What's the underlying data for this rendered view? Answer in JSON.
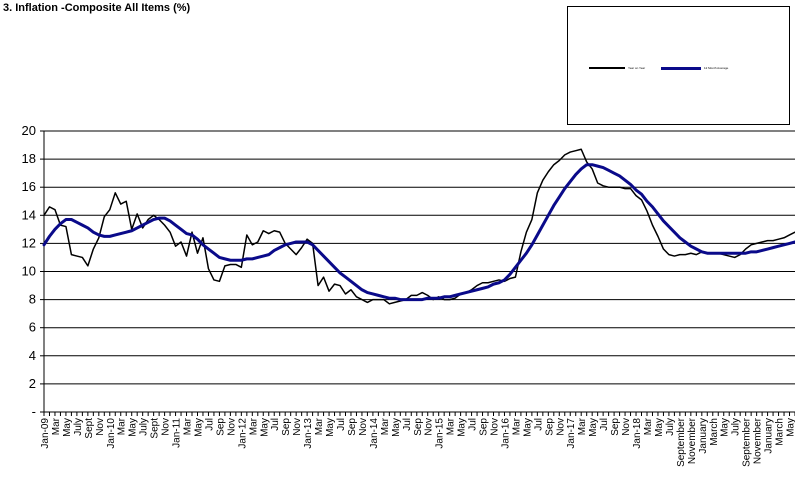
{
  "chart_data": {
    "type": "line",
    "title": "3. Inflation -Composite All Items (%)",
    "xlabel": "",
    "ylabel": "",
    "ylim": [
      0,
      20
    ],
    "yticks": [
      0,
      2,
      4,
      6,
      8,
      10,
      12,
      14,
      16,
      18,
      20
    ],
    "ytick_labels": [
      "-",
      "2",
      "4",
      "6",
      "8",
      "10",
      "12",
      "14",
      "16",
      "18",
      "20"
    ],
    "grid": "horizontal",
    "legend_position": "top-right",
    "x_tick_labels": [
      "Jan-09",
      "Mar",
      "May",
      "July",
      "Sept",
      "Nov",
      "Jan-10",
      "Mar",
      "May",
      "July",
      "Sept",
      "Nov",
      "Jan-11",
      "Mar",
      "May",
      "Jul",
      "Sep",
      "Nov",
      "Jan-12",
      "Mar",
      "May",
      "Jul",
      "Sep",
      "Nov",
      "Jan-13",
      "Mar",
      "May",
      "Jul",
      "Sep",
      "Nov",
      "Jan-14",
      "Mar",
      "May",
      "Jul",
      "Sep",
      "Nov",
      "Jan-15",
      "Mar",
      "May",
      "Jul",
      "Sep",
      "Nov",
      "Jan-16",
      "Mar",
      "May",
      "Jul",
      "Sep",
      "Nov",
      "Jan-17",
      "Mar",
      "May",
      "Jul",
      "Sep",
      "Nov",
      "Jan-18",
      "Mar",
      "May",
      "July",
      "September",
      "November",
      "January",
      "March",
      "May",
      "July",
      "September",
      "November",
      "January",
      "March",
      "May",
      "Jul"
    ],
    "series": [
      {
        "name": "Year on Year",
        "color": "#000000",
        "width": 1.5,
        "values": [
          14.0,
          14.6,
          14.4,
          13.3,
          13.2,
          11.2,
          11.1,
          11.0,
          10.4,
          11.6,
          12.4,
          13.9,
          14.4,
          15.6,
          14.8,
          15.0,
          13.0,
          14.1,
          13.1,
          13.7,
          14.0,
          13.7,
          13.3,
          12.8,
          11.8,
          12.1,
          11.1,
          12.8,
          11.3,
          12.4,
          10.2,
          9.4,
          9.3,
          10.4,
          10.5,
          10.5,
          10.3,
          12.6,
          11.9,
          12.1,
          12.9,
          12.7,
          12.9,
          12.8,
          12.0,
          11.6,
          11.2,
          11.7,
          12.3,
          12.0,
          9.0,
          9.6,
          8.6,
          9.1,
          9.0,
          8.4,
          8.7,
          8.2,
          8.0,
          7.8,
          8.0,
          8.0,
          8.0,
          7.7,
          7.8,
          7.9,
          8.0,
          8.3,
          8.3,
          8.5,
          8.3,
          8.0,
          8.2,
          8.0,
          8.0,
          8.1,
          8.4,
          8.5,
          8.7,
          9.0,
          9.2,
          9.2,
          9.3,
          9.4,
          9.3,
          9.5,
          9.6,
          11.4,
          12.8,
          13.7,
          15.6,
          16.5,
          17.1,
          17.6,
          17.9,
          18.3,
          18.5,
          18.6,
          18.7,
          17.8,
          17.3,
          16.3,
          16.1,
          16.0,
          16.0,
          16.0,
          15.9,
          15.9,
          15.4,
          15.1,
          14.3,
          13.3,
          12.5,
          11.6,
          11.2,
          11.1,
          11.2,
          11.2,
          11.3,
          11.2,
          11.4,
          11.3,
          11.3,
          11.3,
          11.2,
          11.1,
          11.0,
          11.2,
          11.6,
          11.9,
          12.0,
          12.1,
          12.2,
          12.2,
          12.3,
          12.4,
          12.6,
          12.8
        ]
      },
      {
        "name": "12 Month Average",
        "color": "#0a0a8a",
        "width": 3,
        "values": [
          11.9,
          12.5,
          13.0,
          13.4,
          13.7,
          13.7,
          13.5,
          13.3,
          13.1,
          12.8,
          12.6,
          12.5,
          12.5,
          12.6,
          12.7,
          12.8,
          12.9,
          13.1,
          13.3,
          13.5,
          13.7,
          13.8,
          13.8,
          13.6,
          13.3,
          13.0,
          12.7,
          12.6,
          12.3,
          11.9,
          11.6,
          11.3,
          11.0,
          10.9,
          10.8,
          10.8,
          10.8,
          10.9,
          10.9,
          11.0,
          11.1,
          11.2,
          11.5,
          11.7,
          11.9,
          12.0,
          12.1,
          12.1,
          12.1,
          11.9,
          11.5,
          11.1,
          10.7,
          10.3,
          9.9,
          9.6,
          9.3,
          9.0,
          8.7,
          8.5,
          8.4,
          8.3,
          8.2,
          8.1,
          8.1,
          8.0,
          8.0,
          8.0,
          8.0,
          8.0,
          8.1,
          8.1,
          8.1,
          8.2,
          8.2,
          8.3,
          8.4,
          8.5,
          8.6,
          8.7,
          8.8,
          8.9,
          9.1,
          9.2,
          9.4,
          9.8,
          10.3,
          10.8,
          11.3,
          11.9,
          12.6,
          13.3,
          14.0,
          14.7,
          15.3,
          15.9,
          16.4,
          16.9,
          17.3,
          17.6,
          17.6,
          17.5,
          17.4,
          17.2,
          17.0,
          16.8,
          16.5,
          16.2,
          15.8,
          15.5,
          15.0,
          14.6,
          14.1,
          13.6,
          13.2,
          12.8,
          12.4,
          12.1,
          11.8,
          11.6,
          11.4,
          11.3,
          11.3,
          11.3,
          11.3,
          11.3,
          11.3,
          11.3,
          11.3,
          11.4,
          11.4,
          11.5,
          11.6,
          11.7,
          11.8,
          11.9,
          12.0,
          12.1
        ]
      }
    ]
  }
}
